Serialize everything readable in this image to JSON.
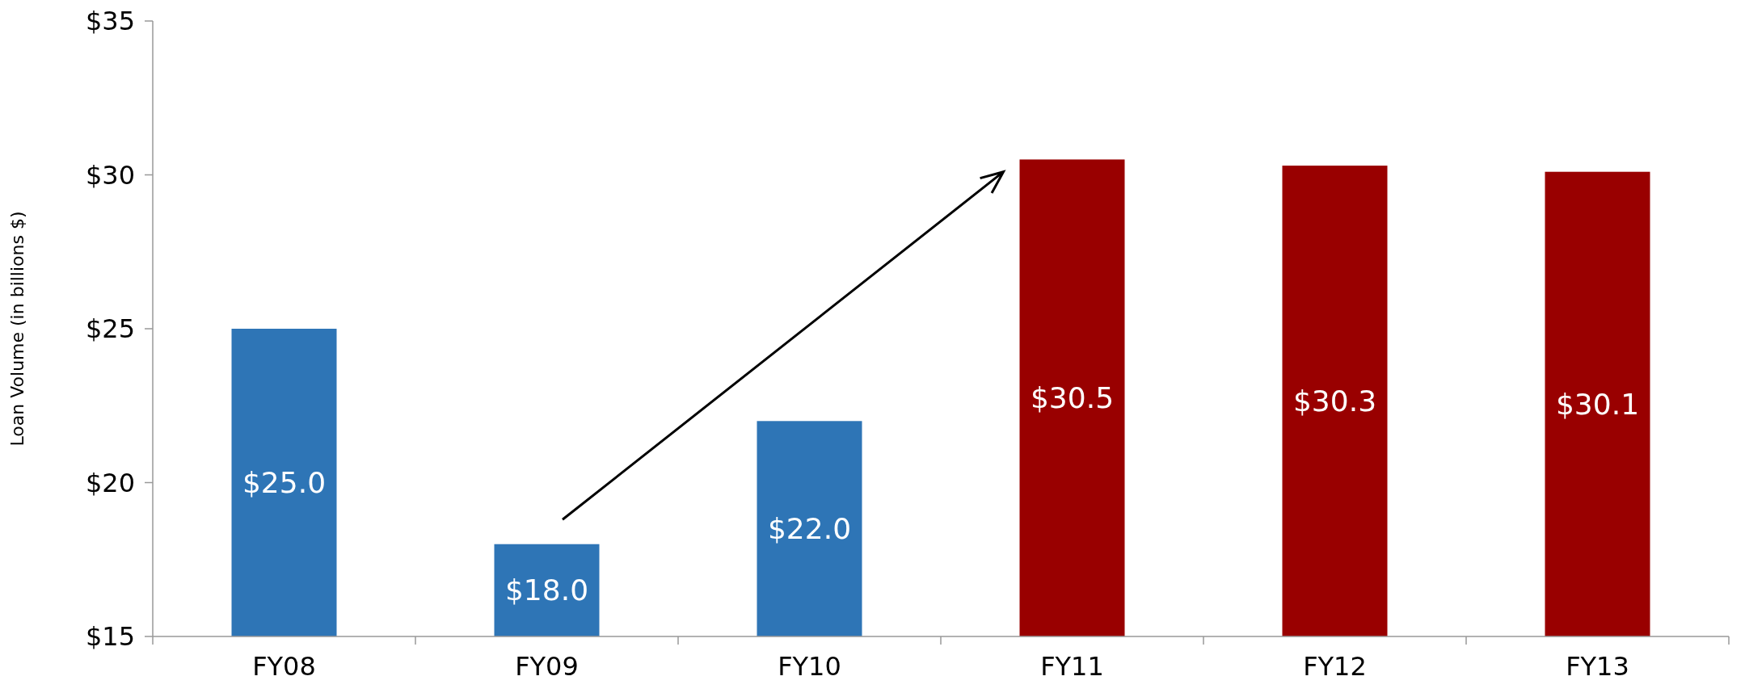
{
  "chart_data": {
    "type": "bar",
    "ylabel": "Loan Volume (in billions $)",
    "categories": [
      "FY08",
      "FY09",
      "FY10",
      "FY11",
      "FY12",
      "FY13"
    ],
    "values": [
      25.0,
      18.0,
      22.0,
      30.5,
      30.3,
      30.1
    ],
    "colors": [
      "#2e75b6",
      "#2e75b6",
      "#2e75b6",
      "#990000",
      "#990000",
      "#990000"
    ],
    "value_labels": [
      "$25.0",
      "$18.0",
      "$22.0",
      "$30.5",
      "$30.3",
      "$30.1"
    ],
    "ylim": [
      15,
      35
    ],
    "yticks": [
      {
        "value": 15,
        "label": "$15"
      },
      {
        "value": 20,
        "label": "$20"
      },
      {
        "value": 25,
        "label": "$25"
      },
      {
        "value": 30,
        "label": "$30"
      },
      {
        "value": 35,
        "label": "$35"
      }
    ],
    "xlabel": null
  }
}
